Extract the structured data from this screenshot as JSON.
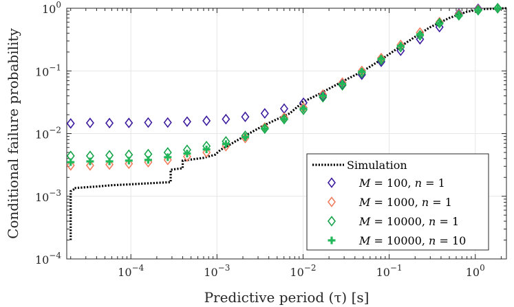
{
  "chart_data": {
    "type": "scatter",
    "xscale": "log",
    "yscale": "log",
    "xlim": [
      1.8e-05,
      2.3
    ],
    "ylim": [
      0.0001,
      1
    ],
    "grid": true,
    "legend_position": "bottom-right",
    "xlabel": "Predictive period (τ) [s]",
    "ylabel": "Conditional failure probability",
    "x_ticks": [
      {
        "value": 0.0001,
        "base": "10",
        "exp": "−4"
      },
      {
        "value": 0.001,
        "base": "10",
        "exp": "−3"
      },
      {
        "value": 0.01,
        "base": "10",
        "exp": "−2"
      },
      {
        "value": 0.1,
        "base": "10",
        "exp": "−1"
      },
      {
        "value": 1,
        "base": "10",
        "exp": "0"
      }
    ],
    "y_ticks": [
      {
        "value": 0.0001,
        "base": "10",
        "exp": "−4"
      },
      {
        "value": 0.001,
        "base": "10",
        "exp": "−3"
      },
      {
        "value": 0.01,
        "base": "10",
        "exp": "−2"
      },
      {
        "value": 0.1,
        "base": "10",
        "exp": "−1"
      },
      {
        "value": 1,
        "base": "10",
        "exp": "0"
      }
    ],
    "x": [
      2e-05,
      3.36e-05,
      5.64e-05,
      9.48e-05,
      0.000159,
      0.000268,
      0.00045,
      0.000756,
      0.00127,
      0.00213,
      0.00359,
      0.00603,
      0.0101,
      0.017,
      0.0286,
      0.0481,
      0.0808,
      0.136,
      0.228,
      0.384,
      0.645,
      1.08,
      1.82
    ],
    "simulation": {
      "name": "Simulation",
      "color": "#000000",
      "points": [
        [
          2e-05,
          0.0002
        ],
        [
          2e-05,
          0.0012
        ],
        [
          2.2e-05,
          0.0013
        ],
        [
          2.2e-05,
          0.00135
        ],
        [
          4e-05,
          0.00143
        ],
        [
          6e-05,
          0.0015
        ],
        [
          0.0001,
          0.00155
        ],
        [
          0.00015,
          0.0016
        ],
        [
          0.00029,
          0.00168
        ],
        [
          0.00029,
          0.00265
        ],
        [
          0.0004,
          0.0028
        ],
        [
          0.0004,
          0.0037
        ],
        [
          0.0007,
          0.0041
        ],
        [
          0.00095,
          0.0046
        ],
        [
          0.0011,
          0.0055
        ],
        [
          0.0015,
          0.007
        ],
        [
          0.0022,
          0.0095
        ],
        [
          0.0035,
          0.0135
        ],
        [
          0.005,
          0.017
        ],
        [
          0.007,
          0.021
        ],
        [
          0.01,
          0.032
        ],
        [
          0.015,
          0.042
        ],
        [
          0.02,
          0.052
        ],
        [
          0.03,
          0.07
        ],
        [
          0.05,
          0.1
        ],
        [
          0.08,
          0.15
        ],
        [
          0.12,
          0.22
        ],
        [
          0.2,
          0.35
        ],
        [
          0.3,
          0.5
        ],
        [
          0.5,
          0.7
        ],
        [
          0.8,
          0.88
        ],
        [
          1.2,
          0.97
        ],
        [
          2.3,
          1.0
        ]
      ]
    },
    "series": [
      {
        "name": "M = 100, n = 1",
        "label": {
          "M": "M",
          "eq1": " = 100, ",
          "n": "n",
          "eq2": " = 1"
        },
        "marker": "diamond",
        "color": "#3d1b9e",
        "values": [
          0.0145,
          0.0148,
          0.0147,
          0.0148,
          0.015,
          0.015,
          0.0155,
          0.016,
          0.017,
          0.0185,
          0.021,
          0.025,
          0.031,
          0.04,
          0.061,
          0.087,
          0.14,
          0.21,
          0.32,
          0.5,
          0.82,
          0.98,
          1.0
        ]
      },
      {
        "name": "M = 1000, n = 1",
        "label": {
          "M": "M",
          "eq1": " = 1000, ",
          "n": "n",
          "eq2": " = 1"
        },
        "marker": "diamond",
        "color": "#f07d5e",
        "values": [
          0.0031,
          0.0031,
          0.0032,
          0.0033,
          0.0035,
          0.0038,
          0.0043,
          0.005,
          0.0063,
          0.0085,
          0.0125,
          0.018,
          0.026,
          0.042,
          0.065,
          0.1,
          0.16,
          0.26,
          0.41,
          0.6,
          0.8,
          0.95,
          1.0
        ]
      },
      {
        "name": "M = 10000, n = 1",
        "label": {
          "M": "M",
          "eq1": " = 10000, ",
          "n": "n",
          "eq2": " = 1"
        },
        "marker": "diamond",
        "color": "#16a34a",
        "values": [
          0.0044,
          0.0044,
          0.0045,
          0.0046,
          0.0047,
          0.005,
          0.0055,
          0.0063,
          0.0075,
          0.0092,
          0.012,
          0.017,
          0.024,
          0.038,
          0.059,
          0.093,
          0.15,
          0.24,
          0.37,
          0.58,
          0.77,
          0.93,
          1.0
        ]
      },
      {
        "name": "M = 10000, n = 10",
        "label": {
          "M": "M",
          "eq1": " = 10000, ",
          "n": "n",
          "eq2": " = 10"
        },
        "marker": "plus",
        "color": "#21b85a",
        "values": [
          0.0035,
          0.0036,
          0.0036,
          0.0037,
          0.0038,
          0.0042,
          0.0048,
          0.0056,
          0.0068,
          0.0088,
          0.012,
          0.017,
          0.025,
          0.04,
          0.062,
          0.097,
          0.155,
          0.25,
          0.38,
          0.57,
          0.76,
          0.93,
          1.0
        ]
      }
    ]
  }
}
